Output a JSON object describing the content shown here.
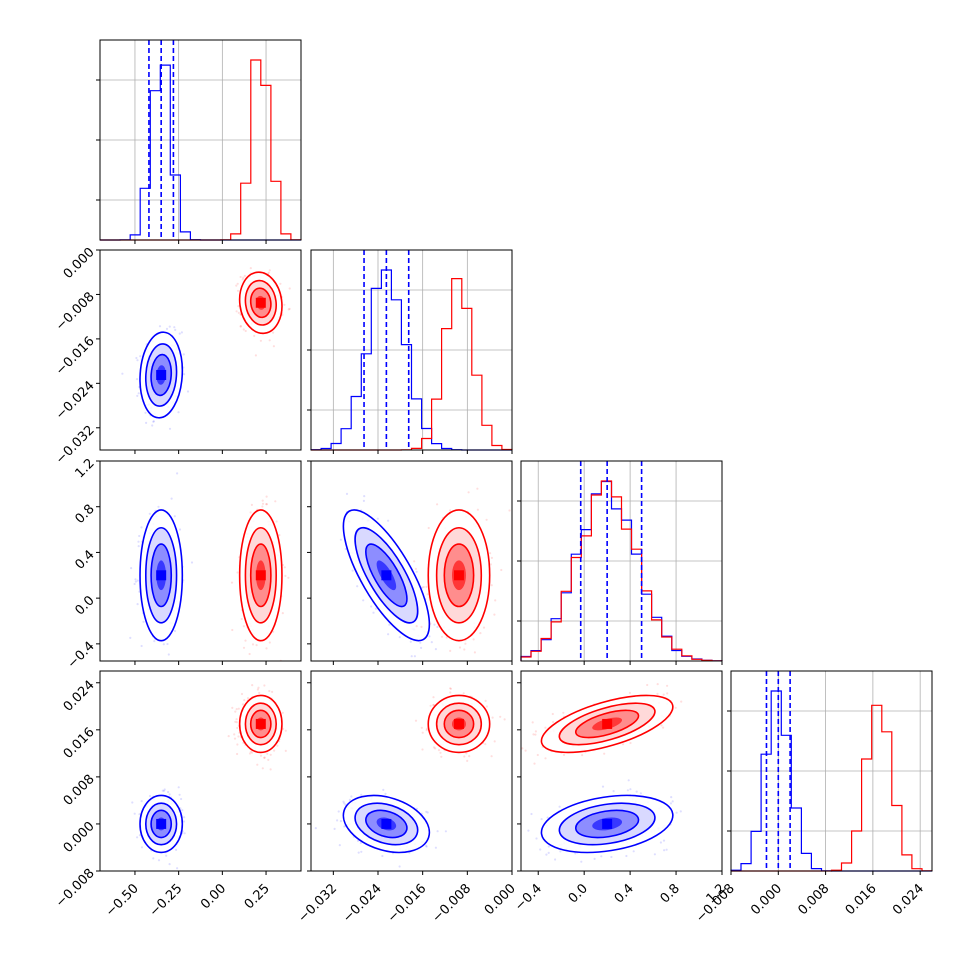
{
  "chart_data": {
    "type": "corner",
    "description_series": [
      {
        "color": "#0000ff"
      },
      {
        "color": "#ff0000"
      }
    ],
    "parameters": [
      {
        "range": [
          -0.7,
          0.45
        ],
        "ticks": [
          -0.5,
          -0.25,
          0.0,
          0.25
        ],
        "tick_labels": [
          "−0.50",
          "−0.25",
          "0.00",
          "0.25"
        ],
        "blue": {
          "mean": -0.35,
          "sd": 0.055,
          "quantiles": [
            -0.42,
            -0.35,
            -0.28
          ]
        },
        "red": {
          "mean": 0.22,
          "sd": 0.055
        }
      },
      {
        "range": [
          -0.036,
          0.0
        ],
        "ticks": [
          -0.032,
          -0.024,
          -0.016,
          -0.008,
          0.0
        ],
        "tick_labels": [
          "−0.032",
          "−0.024",
          "−0.016",
          "−0.008",
          "0.000"
        ],
        "blue": {
          "mean": -0.0225,
          "sd": 0.0035,
          "quantiles": [
            -0.0265,
            -0.0225,
            -0.0185
          ]
        },
        "red": {
          "mean": -0.0095,
          "sd": 0.0025
        }
      },
      {
        "range": [
          -0.55,
          1.2
        ],
        "ticks": [
          -0.4,
          0.0,
          0.4,
          0.8,
          1.2
        ],
        "tick_labels": [
          "−0.4",
          "0.0",
          "0.4",
          "0.8",
          "1.2"
        ],
        "blue": {
          "mean": 0.2,
          "sd": 0.26,
          "quantiles": [
            -0.03,
            0.2,
            0.5
          ]
        },
        "red": {
          "mean": 0.2,
          "sd": 0.26
        }
      },
      {
        "range": [
          -0.008,
          0.026
        ],
        "ticks": [
          -0.008,
          0.0,
          0.008,
          0.016,
          0.024
        ],
        "tick_labels": [
          "−0.008",
          "0.000",
          "0.008",
          "0.016",
          "0.024"
        ],
        "blue": {
          "mean": 0.0,
          "sd": 0.0022,
          "quantiles": [
            -0.002,
            0.0,
            0.002
          ]
        },
        "red": {
          "mean": 0.017,
          "sd": 0.0022
        }
      }
    ],
    "correlations": {
      "blue": {
        "1-0": 0.1,
        "2-0": 0.0,
        "2-1": -0.75,
        "3-0": 0.0,
        "3-1": -0.3,
        "3-2": 0.3
      },
      "red": {
        "1-0": -0.1,
        "2-0": 0.0,
        "2-1": 0.0,
        "3-0": 0.0,
        "3-1": 0.0,
        "3-2": 0.6
      }
    },
    "grid": true
  }
}
